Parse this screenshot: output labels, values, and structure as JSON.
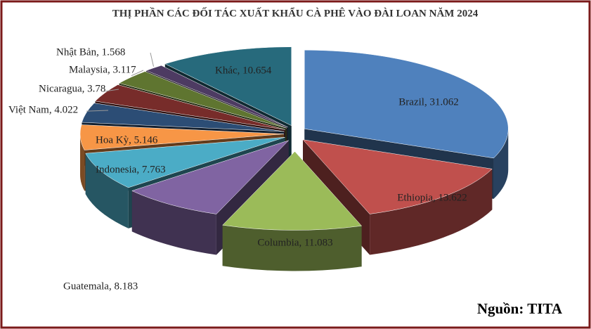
{
  "chart_data": {
    "type": "pie3d",
    "title": "THỊ PHẦN CÁC ĐỐI TÁC XUẤT KHẨU CÀ PHÊ VÀO ĐÀI LOAN NĂM 2024",
    "values": [
      31.062,
      13.622,
      11.083,
      8.183,
      7.763,
      5.146,
      4.022,
      3.78,
      3.117,
      1.568,
      10.654
    ],
    "value_labels": [
      "Brazil, 31.062",
      "Ethiopia, 13.622",
      "Columbia, 11.083",
      "Guatemala, 8.183",
      "Indonesia, 7.763",
      "Hoa Kỳ, 5.146",
      "Việt Nam, 4.022",
      "Nicaragua, 3.78",
      "Malaysia, 3.117",
      "Nhật Bản, 1.568",
      "Khác, 10.654"
    ],
    "colors": [
      "#4f81bd",
      "#c0504d",
      "#9bbb59",
      "#8064a2",
      "#4bacc6",
      "#f79646",
      "#2c4d75",
      "#772c2a",
      "#5f7530",
      "#4d3b62",
      "#276a7c"
    ],
    "source": "Nguồn: TITA"
  }
}
